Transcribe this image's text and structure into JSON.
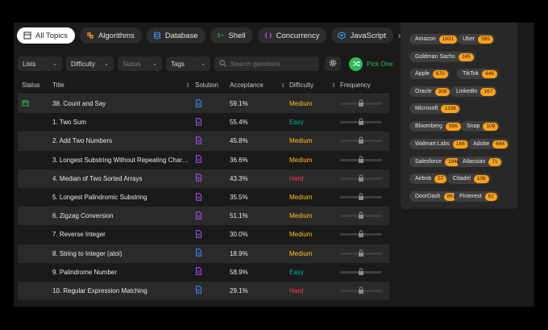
{
  "topics": [
    {
      "label": "All Topics",
      "icon": "grid-icon",
      "active": true
    },
    {
      "label": "Algorithms",
      "icon": "algorithms-icon",
      "color": "#ffa116"
    },
    {
      "label": "Database",
      "icon": "database-icon",
      "color": "#3f8cff"
    },
    {
      "label": "Shell",
      "icon": "shell-icon",
      "color": "#2cbb5d"
    },
    {
      "label": "Concurrency",
      "icon": "concurrency-icon",
      "color": "#a855f7"
    },
    {
      "label": "JavaScript",
      "icon": "javascript-icon",
      "color": "#3fa7ff"
    }
  ],
  "filters": {
    "lists": "Lists",
    "difficulty": "Difficulty",
    "status": "Status",
    "tags": "Tags",
    "search_placeholder": "Search questions",
    "pick_one": "Pick One"
  },
  "table": {
    "headers": {
      "status": "Status",
      "title": "Title",
      "solution": "Solution",
      "acceptance": "Acceptance",
      "difficulty": "Difficulty",
      "frequency": "Frequency"
    },
    "rows": [
      {
        "status": "calendar",
        "title": "38. Count and Say",
        "solution": "blue",
        "acceptance": "59.1%",
        "difficulty": "Medium"
      },
      {
        "status": "",
        "title": "1. Two Sum",
        "solution": "purple",
        "acceptance": "55.4%",
        "difficulty": "Easy"
      },
      {
        "status": "",
        "title": "2. Add Two Numbers",
        "solution": "purple",
        "acceptance": "45.8%",
        "difficulty": "Medium"
      },
      {
        "status": "",
        "title": "3. Longest Substring Without Repeating Chara...",
        "solution": "purple",
        "acceptance": "36.6%",
        "difficulty": "Medium"
      },
      {
        "status": "",
        "title": "4. Median of Two Sorted Arrays",
        "solution": "purple",
        "acceptance": "43.3%",
        "difficulty": "Hard"
      },
      {
        "status": "",
        "title": "5. Longest Palindromic Substring",
        "solution": "purple",
        "acceptance": "35.5%",
        "difficulty": "Medium"
      },
      {
        "status": "",
        "title": "6. Zigzag Conversion",
        "solution": "purple",
        "acceptance": "51.1%",
        "difficulty": "Medium"
      },
      {
        "status": "",
        "title": "7. Reverse Integer",
        "solution": "purple",
        "acceptance": "30.0%",
        "difficulty": "Medium"
      },
      {
        "status": "",
        "title": "8. String to Integer (atoi)",
        "solution": "blue",
        "acceptance": "18.9%",
        "difficulty": "Medium"
      },
      {
        "status": "",
        "title": "9. Palindrome Number",
        "solution": "purple",
        "acceptance": "58.9%",
        "difficulty": "Easy"
      },
      {
        "status": "",
        "title": "10. Regular Expression Matching",
        "solution": "blue",
        "acceptance": "29.1%",
        "difficulty": "Hard"
      }
    ]
  },
  "companies": [
    {
      "name": "Amazon",
      "count": "1831"
    },
    {
      "name": "Uber",
      "count": "595"
    },
    {
      "name": "Goldman Sachs",
      "count": "245"
    },
    {
      "name": "Apple",
      "count": "670"
    },
    {
      "name": "TikTok",
      "count": "446"
    },
    {
      "name": "Oracle",
      "count": "308"
    },
    {
      "name": "LinkedIn",
      "count": "167"
    },
    {
      "name": "Microsoft",
      "count": "1336"
    },
    {
      "name": "Bloomberg",
      "count": "996"
    },
    {
      "name": "Snap",
      "count": "109"
    },
    {
      "name": "Walmart Labs",
      "count": "168"
    },
    {
      "name": "Adobe",
      "count": "644"
    },
    {
      "name": "Salesforce",
      "count": "194"
    },
    {
      "name": "Atlassian",
      "count": "71"
    },
    {
      "name": "Airbnb",
      "count": "57"
    },
    {
      "name": "Citadel",
      "count": "106"
    },
    {
      "name": "DoorDash",
      "count": "86"
    },
    {
      "name": "Pinterest",
      "count": "62"
    }
  ],
  "colors": {
    "easy": "#00b8a3",
    "medium": "#ffc01e",
    "hard": "#ff375f",
    "accent": "#ffa116",
    "green": "#2cbb5d"
  }
}
